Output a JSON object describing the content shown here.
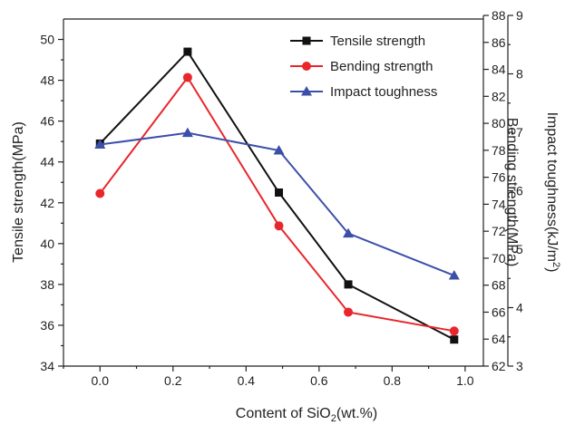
{
  "chart_data": {
    "type": "line",
    "xlabel": "Content of SiO",
    "xlabel_sub": "2",
    "xlabel_suffix": "(wt.%)",
    "xlim": [
      -0.1,
      1.05
    ],
    "x_ticks": [
      "0.0",
      "0.2",
      "0.4",
      "0.6",
      "0.8",
      "1.0"
    ],
    "x_tick_values": [
      0.0,
      0.2,
      0.4,
      0.6,
      0.8,
      1.0
    ],
    "grid": false,
    "legend_position": "top-right",
    "axes": {
      "left": {
        "label": "Tensile strength(MPa)",
        "ylim": [
          34,
          51
        ],
        "ticks": [
          "34",
          "36",
          "38",
          "40",
          "42",
          "44",
          "46",
          "48",
          "50"
        ],
        "tick_values": [
          34,
          36,
          38,
          40,
          42,
          44,
          46,
          48,
          50
        ]
      },
      "right_inner": {
        "label": "Bending strength(MPa)",
        "ylim": [
          62,
          88
        ],
        "ticks": [
          "62",
          "64",
          "66",
          "68",
          "70",
          "72",
          "74",
          "76",
          "78",
          "80",
          "82",
          "84",
          "86",
          "88"
        ],
        "tick_values": [
          62,
          64,
          66,
          68,
          70,
          72,
          74,
          76,
          78,
          80,
          82,
          84,
          86,
          88
        ]
      },
      "right_outer": {
        "label": "Impact toughness(kJ/m",
        "label_sup": "2",
        "label_suffix": ")",
        "ylim": [
          3,
          9
        ],
        "ticks": [
          "3",
          "4",
          "5",
          "6",
          "7",
          "8",
          "9"
        ],
        "tick_values": [
          3,
          4,
          5,
          6,
          7,
          8,
          9
        ]
      }
    },
    "series": [
      {
        "name": "Tensile strength",
        "axis": "left",
        "color": "#111111",
        "marker": "square",
        "x": [
          0.0,
          0.24,
          0.49,
          0.68,
          0.97
        ],
        "y": [
          44.9,
          49.4,
          42.5,
          38.0,
          35.3
        ]
      },
      {
        "name": "Bending strength",
        "axis": "right_inner",
        "color": "#e8262c",
        "marker": "circle",
        "x": [
          0.0,
          0.24,
          0.49,
          0.68,
          0.97
        ],
        "y": [
          74.8,
          83.4,
          72.4,
          66.0,
          64.6
        ]
      },
      {
        "name": "Impact toughness",
        "axis": "right_outer",
        "color": "#3c4fa8",
        "marker": "triangle",
        "x": [
          0.0,
          0.24,
          0.49,
          0.68,
          0.97
        ],
        "y": [
          6.79,
          6.99,
          6.69,
          5.27,
          4.55
        ]
      }
    ]
  }
}
